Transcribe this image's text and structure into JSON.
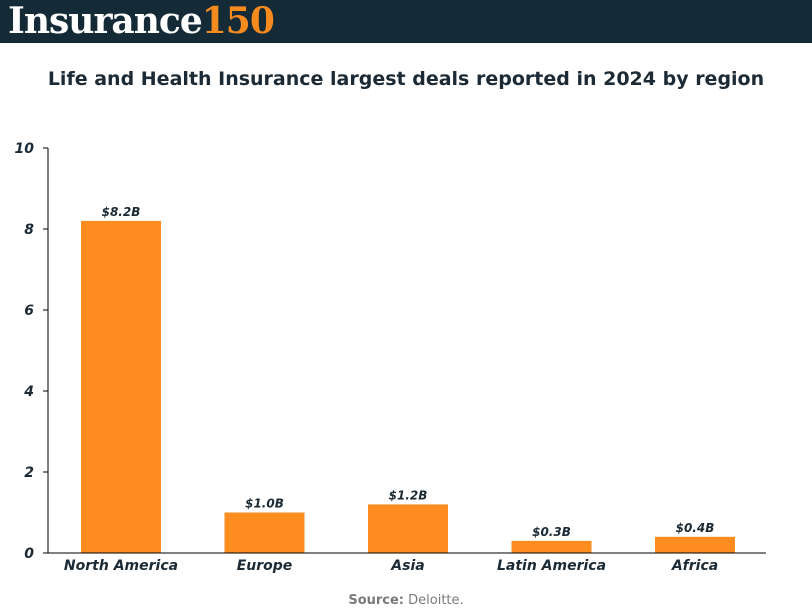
{
  "header": {
    "brand_word": "Insurance",
    "brand_number": "150"
  },
  "colors": {
    "header_bg": "#142a37",
    "brand_accent": "#f58a1f",
    "bar": "#ff8c1f",
    "text": "#1b2a35"
  },
  "chart_data": {
    "type": "bar",
    "title": "Life and Health Insurance largest deals reported in 2024 by region",
    "xlabel": "",
    "ylabel": "",
    "categories": [
      "North America",
      "Europe",
      "Asia",
      "Latin America",
      "Africa"
    ],
    "values": [
      8.2,
      1.0,
      1.2,
      0.3,
      0.4
    ],
    "data_labels": [
      "$8.2B",
      "$1.0B",
      "$1.2B",
      "$0.3B",
      "$0.4B"
    ],
    "ylim": [
      0,
      10
    ],
    "yticks": [
      0,
      2,
      4,
      6,
      8,
      10
    ],
    "grid": false,
    "legend": "none"
  },
  "footer": {
    "source_label": "Source:",
    "source_text": " Deloitte."
  }
}
